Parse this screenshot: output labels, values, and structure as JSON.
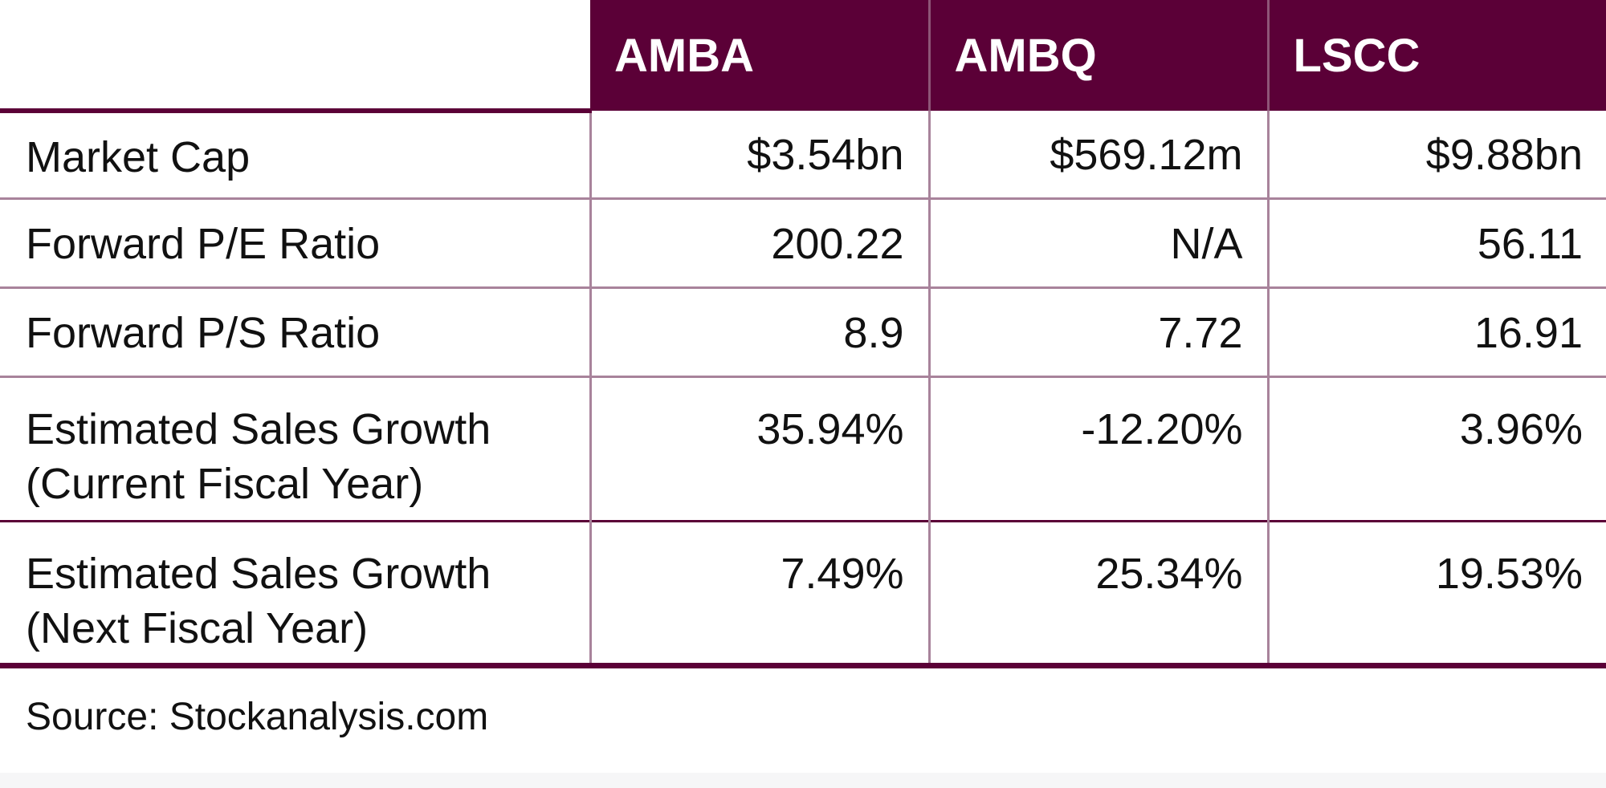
{
  "chart_data": {
    "type": "table",
    "columns": [
      "",
      "AMBA",
      "AMBQ",
      "LSCC"
    ],
    "rows": [
      {
        "label": "Market Cap",
        "values": [
          "$3.54bn",
          "$569.12m",
          "$9.88bn"
        ]
      },
      {
        "label": "Forward P/E Ratio",
        "values": [
          "200.22",
          "N/A",
          "56.11"
        ]
      },
      {
        "label": "Forward P/S Ratio",
        "values": [
          "8.9",
          "7.72",
          "16.91"
        ]
      },
      {
        "label": "Estimated Sales Growth (Current Fiscal Year)",
        "values": [
          "35.94%",
          "-12.20%",
          "3.96%"
        ]
      },
      {
        "label": "Estimated Sales Growth (Next Fiscal Year)",
        "values": [
          "7.49%",
          "25.34%",
          "19.53%"
        ]
      }
    ],
    "source": "Source: Stockanalysis.com"
  },
  "colors": {
    "header_bg": "#5b0037",
    "header_text": "#ffffff",
    "grid_line": "#a8839b",
    "body_text": "#111111"
  }
}
